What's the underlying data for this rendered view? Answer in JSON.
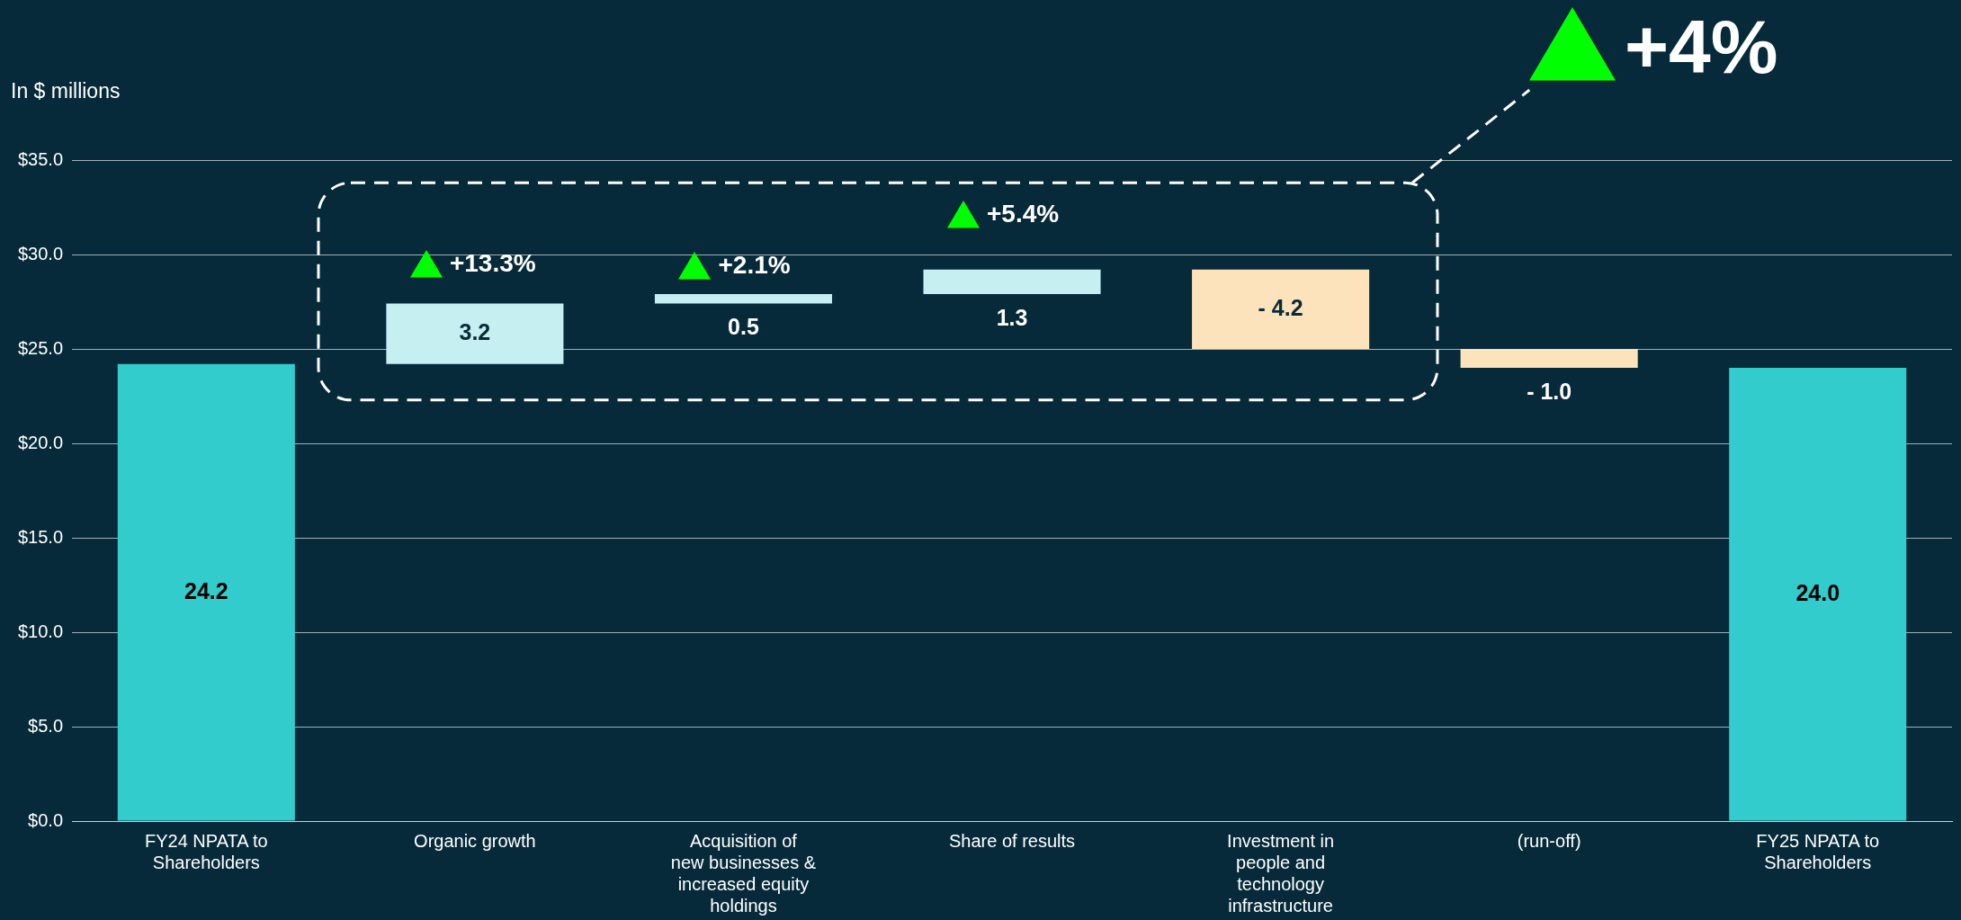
{
  "chart_data": {
    "type": "bar",
    "ylabel": "In $ millions",
    "categories": [
      "FY24 NPATA to Shareholders",
      "Organic growth",
      "Acquisition of new businesses & increased equity holdings",
      "Share of results",
      "Investment in people and technology infrastructure",
      "(run-off)",
      "FY25 NPATA to Shareholders"
    ],
    "values": [
      24.2,
      3.2,
      0.5,
      1.3,
      -4.2,
      -1.0,
      24.0
    ],
    "base": [
      0,
      24.2,
      27.4,
      27.9,
      29.2,
      25.0,
      0
    ],
    "colors": [
      "#33cccc",
      "#c5eff0",
      "#c5eff0",
      "#c5eff0",
      "#fde3bb",
      "#fde3bb",
      "#33cccc"
    ],
    "value_labels": [
      "24.2",
      "3.2",
      "0.5",
      "1.3",
      "- 4.2",
      "- 1.0",
      "24.0"
    ],
    "ylim": [
      0,
      35
    ],
    "yticks": [
      {
        "value": 0,
        "label": "$0.0"
      },
      {
        "value": 5,
        "label": "$5.0"
      },
      {
        "value": 10,
        "label": "$10.0"
      },
      {
        "value": 15,
        "label": "$15.0"
      },
      {
        "value": 20,
        "label": "$20.0"
      },
      {
        "value": 25,
        "label": "$25.0"
      },
      {
        "value": 30,
        "label": "$30.0"
      },
      {
        "value": 35,
        "label": "$35.0"
      }
    ],
    "grid": "y",
    "legend": false,
    "annotations": [
      "+13.3%",
      "+2.1%",
      "+5.4%",
      "+4%"
    ]
  }
}
